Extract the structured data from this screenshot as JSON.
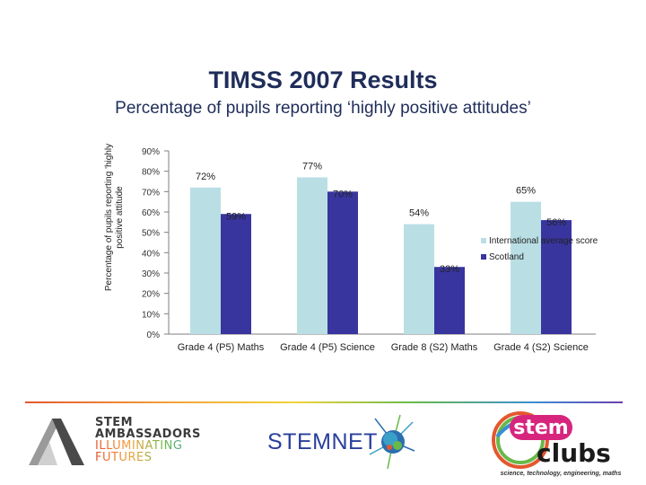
{
  "slide": {
    "title": "TIMSS 2007 Results",
    "subtitle": "Percentage of pupils reporting ‘highly positive attitudes’"
  },
  "chart_data": {
    "type": "bar",
    "ylabel": "Percentage of pupils reporting 'highly positive attitude",
    "xlabel": "",
    "ylim": [
      0,
      90
    ],
    "ytick_step": 10,
    "ytick_format": "{v}%",
    "grid": false,
    "legend_position": "right",
    "categories": [
      "Grade 4 (P5) Maths",
      "Grade 4 (P5) Science",
      "Grade 8 (S2) Maths",
      "Grade 4 (S2) Science"
    ],
    "series": [
      {
        "name": "International average score",
        "values": [
          72,
          77,
          54,
          65
        ],
        "labels": [
          "72%",
          "77%",
          "54%",
          "65%"
        ],
        "color": "#b9dfe5"
      },
      {
        "name": "Scotland",
        "values": [
          59,
          70,
          33,
          56
        ],
        "labels": [
          "59%",
          "70%",
          "33%",
          "56%"
        ],
        "color": "#38359f"
      }
    ]
  },
  "footer": {
    "ambassadors": {
      "line1": "STEM",
      "line2": "AMBASSADORS",
      "line3": "ILLUMINATING",
      "line4": "FUTURES"
    },
    "stemnet": "STEMNET",
    "clubs": {
      "word1": "stem",
      "word2": "clubs",
      "tagline": "science, technology, engineering, maths"
    }
  }
}
